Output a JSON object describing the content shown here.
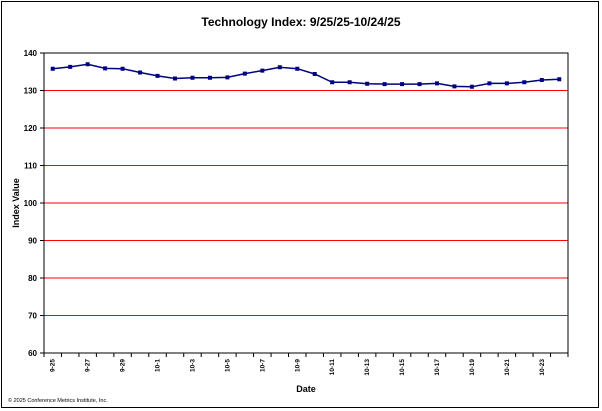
{
  "chart_data": {
    "type": "line",
    "title": "Technology Index: 9/25/25-10/24/25",
    "xlabel": "Date",
    "ylabel": "Index Value",
    "ylim": [
      60,
      140
    ],
    "yticks": [
      60,
      70,
      80,
      90,
      100,
      110,
      120,
      130,
      140
    ],
    "grid": true,
    "legend": "none",
    "colors": {
      "line": "#000080",
      "marker": "#000080",
      "grid": "#ff0000",
      "plot_border": "#000000"
    },
    "x_tick_labels": [
      "9-25",
      "9-27",
      "9-29",
      "10-1",
      "10-3",
      "10-5",
      "10-7",
      "10-9",
      "10-11",
      "10-13",
      "10-15",
      "10-17",
      "10-19",
      "10-21",
      "10-23"
    ],
    "x": [
      "9-25",
      "9-26",
      "9-27",
      "9-28",
      "9-29",
      "9-30",
      "10-1",
      "10-2",
      "10-3",
      "10-4",
      "10-5",
      "10-6",
      "10-7",
      "10-8",
      "10-9",
      "10-10",
      "10-11",
      "10-12",
      "10-13",
      "10-14",
      "10-15",
      "10-16",
      "10-17",
      "10-18",
      "10-19",
      "10-20",
      "10-21",
      "10-22",
      "10-23",
      "10-24"
    ],
    "values": [
      135.8,
      136.3,
      137.0,
      135.9,
      135.8,
      134.8,
      133.9,
      133.2,
      133.4,
      133.4,
      133.5,
      134.5,
      135.3,
      136.2,
      135.8,
      134.4,
      132.2,
      132.2,
      131.8,
      131.7,
      131.7,
      131.7,
      131.9,
      131.1,
      131.0,
      131.9,
      131.9,
      132.2,
      132.8,
      133.0
    ]
  },
  "footer": {
    "copyright": "© 2025 Conference Metrics Institute, Inc."
  }
}
